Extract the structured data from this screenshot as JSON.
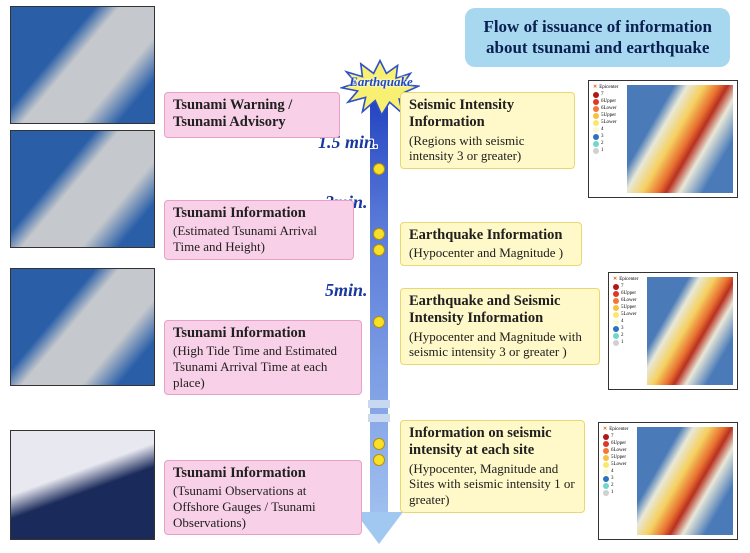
{
  "title": {
    "line1": "Flow of issuance of information",
    "line2": "about tsunami and earthquake",
    "bg": "#a8d8f0",
    "color": "#0a2050",
    "fontsize": 17
  },
  "starburst": {
    "label": "Earthquake",
    "fill": "#f8f070",
    "stroke": "#3050c8"
  },
  "timeline": {
    "gradient_top": "#2040c0",
    "gradient_bottom": "#a0c8f0",
    "times": [
      "1.5 min.",
      "3min.",
      "5min."
    ]
  },
  "left": [
    {
      "header": "Tsunami Warning / Tsunami Advisory",
      "detail": ""
    },
    {
      "header": "Tsunami Information",
      "detail": "(Estimated Tsunami Arrival Time and Height)"
    },
    {
      "header": "Tsunami Information",
      "detail": "(High Tide Time and Estimated Tsunami Arrival Time at each place)"
    },
    {
      "header": "Tsunami Information",
      "detail": "(Tsunami Observations at Offshore Gauges / Tsunami Observations)"
    }
  ],
  "right": [
    {
      "header": "Seismic Intensity Information",
      "detail": "(Regions with seismic intensity 3 or greater)"
    },
    {
      "header": "Earthquake Information",
      "detail": "(Hypocenter and Magnitude )"
    },
    {
      "header": "Earthquake and Seismic Intensity Information",
      "detail": "(Hypocenter and Magnitude with seismic intensity 3 or greater )"
    },
    {
      "header": "Information on seismic intensity at each site",
      "detail": "(Hypocenter, Magnitude and Sites with seismic intensity 1 or greater)"
    }
  ],
  "styles": {
    "pink_bg": "#f8d0e8",
    "yellow_bg": "#fff8c8",
    "dot_color": "#f8e028"
  },
  "legend": {
    "title": "Epicenter",
    "items": [
      {
        "label": "7",
        "color": "#b01818"
      },
      {
        "label": "6Upper",
        "color": "#e03828"
      },
      {
        "label": "6Lower",
        "color": "#f07838"
      },
      {
        "label": "5Upper",
        "color": "#f8c040"
      },
      {
        "label": "5Lower",
        "color": "#f8e870"
      },
      {
        "label": "4",
        "color": "#f8f8d8"
      },
      {
        "label": "3",
        "color": "#3070c0"
      },
      {
        "label": "2",
        "color": "#70d8c8"
      },
      {
        "label": "1",
        "color": "#d0d0d0"
      }
    ]
  }
}
